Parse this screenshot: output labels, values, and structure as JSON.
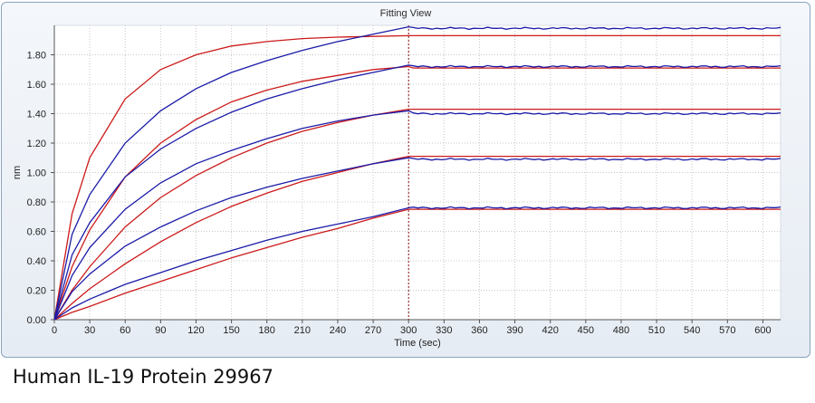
{
  "window": {
    "title": "Fitting View"
  },
  "caption": "Human IL-19 Protein 29967",
  "colors": {
    "measured": "#1a1aa8",
    "fit": "#cc1a1a",
    "marker": "#8b1010"
  },
  "chart_data": {
    "type": "line",
    "title": "",
    "xlabel": "Time (sec)",
    "ylabel": "nm",
    "xlim": [
      0,
      615
    ],
    "ylim": [
      0,
      2.0
    ],
    "xticks": [
      0,
      30,
      60,
      90,
      120,
      150,
      180,
      210,
      240,
      270,
      300,
      330,
      360,
      390,
      420,
      450,
      480,
      510,
      540,
      570,
      600
    ],
    "yticks": [
      0.0,
      0.2,
      0.4,
      0.6,
      0.8,
      1.0,
      1.2,
      1.4,
      1.6,
      1.8
    ],
    "ytick_labels": [
      "0.00",
      "0.20",
      "0.40",
      "0.60",
      "0.80",
      "1.00",
      "1.20",
      "1.40",
      "1.60",
      "1.80"
    ],
    "grid": true,
    "dissociation_start": 300,
    "x_end": 615,
    "series": [
      {
        "measured": {
          "x": [
            0,
            15,
            30,
            60,
            90,
            120,
            150,
            180,
            210,
            240,
            270,
            300
          ],
          "y": [
            0,
            0.58,
            0.85,
            1.2,
            1.42,
            1.57,
            1.68,
            1.76,
            1.83,
            1.89,
            1.94,
            1.99
          ],
          "plateau": 1.98
        },
        "fit": {
          "x": [
            0,
            15,
            30,
            60,
            90,
            120,
            150,
            180,
            210,
            240,
            270,
            300
          ],
          "y": [
            0,
            0.72,
            1.1,
            1.5,
            1.7,
            1.8,
            1.86,
            1.89,
            1.91,
            1.92,
            1.925,
            1.93
          ],
          "plateau": 1.93
        }
      },
      {
        "measured": {
          "x": [
            0,
            15,
            30,
            60,
            90,
            120,
            150,
            180,
            210,
            240,
            270,
            300
          ],
          "y": [
            0,
            0.44,
            0.66,
            0.97,
            1.16,
            1.3,
            1.41,
            1.5,
            1.57,
            1.63,
            1.68,
            1.73
          ],
          "plateau": 1.72
        },
        "fit": {
          "x": [
            0,
            15,
            30,
            60,
            90,
            120,
            150,
            180,
            210,
            240,
            270,
            300
          ],
          "y": [
            0,
            0.36,
            0.61,
            0.97,
            1.2,
            1.36,
            1.48,
            1.56,
            1.62,
            1.66,
            1.7,
            1.72
          ],
          "plateau": 1.71
        }
      },
      {
        "measured": {
          "x": [
            0,
            15,
            30,
            60,
            90,
            120,
            150,
            180,
            210,
            240,
            270,
            300
          ],
          "y": [
            0,
            0.3,
            0.49,
            0.75,
            0.93,
            1.06,
            1.15,
            1.23,
            1.3,
            1.35,
            1.39,
            1.42
          ],
          "plateau": 1.4
        },
        "fit": {
          "x": [
            0,
            15,
            30,
            60,
            90,
            120,
            150,
            180,
            210,
            240,
            270,
            300
          ],
          "y": [
            0,
            0.2,
            0.36,
            0.63,
            0.83,
            0.98,
            1.1,
            1.2,
            1.28,
            1.34,
            1.39,
            1.43
          ],
          "plateau": 1.43
        }
      },
      {
        "measured": {
          "x": [
            0,
            15,
            30,
            60,
            90,
            120,
            150,
            180,
            210,
            240,
            270,
            300
          ],
          "y": [
            0,
            0.19,
            0.31,
            0.5,
            0.63,
            0.74,
            0.83,
            0.9,
            0.96,
            1.01,
            1.06,
            1.1
          ],
          "plateau": 1.09
        },
        "fit": {
          "x": [
            0,
            15,
            30,
            60,
            90,
            120,
            150,
            180,
            210,
            240,
            270,
            300
          ],
          "y": [
            0,
            0.11,
            0.21,
            0.38,
            0.53,
            0.66,
            0.77,
            0.86,
            0.94,
            1.0,
            1.06,
            1.11
          ],
          "plateau": 1.11
        }
      },
      {
        "measured": {
          "x": [
            0,
            15,
            30,
            60,
            90,
            120,
            150,
            180,
            210,
            240,
            270,
            300
          ],
          "y": [
            0,
            0.08,
            0.14,
            0.24,
            0.32,
            0.4,
            0.47,
            0.54,
            0.6,
            0.65,
            0.7,
            0.76
          ],
          "plateau": 0.76
        },
        "fit": {
          "x": [
            0,
            15,
            30,
            60,
            90,
            120,
            150,
            180,
            210,
            240,
            270,
            300
          ],
          "y": [
            0,
            0.05,
            0.09,
            0.18,
            0.26,
            0.34,
            0.42,
            0.49,
            0.56,
            0.62,
            0.69,
            0.75
          ],
          "plateau": 0.75
        }
      }
    ]
  }
}
